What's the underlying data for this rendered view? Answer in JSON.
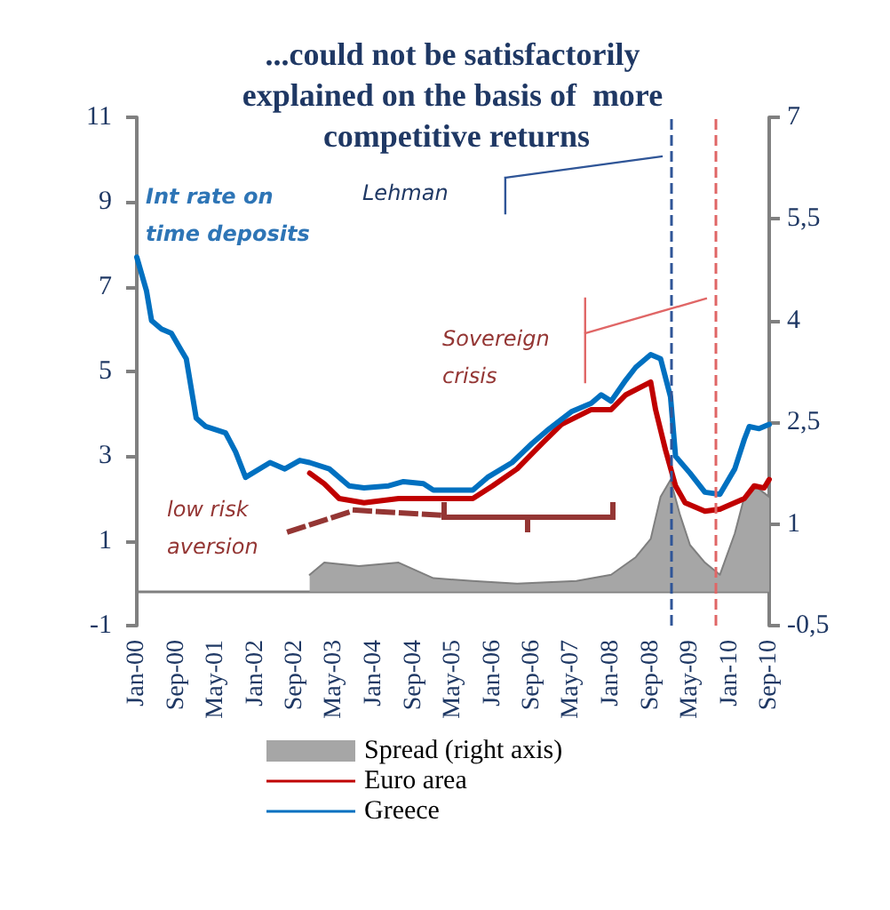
{
  "chart_data": {
    "type": "line",
    "title": "...could not be satisfactorily explained on the basis of  more competitive returns",
    "xlim": [
      "2000-01",
      "2010-09"
    ],
    "xticks": [
      {
        "value": "2000-01",
        "label": "Jan-00"
      },
      {
        "value": "2000-09",
        "label": "Sep-00"
      },
      {
        "value": "2001-05",
        "label": "May-01"
      },
      {
        "value": "2002-01",
        "label": "Jan-02"
      },
      {
        "value": "2002-09",
        "label": "Sep-02"
      },
      {
        "value": "2003-05",
        "label": "May-03"
      },
      {
        "value": "2004-01",
        "label": "Jan-04"
      },
      {
        "value": "2004-09",
        "label": "Sep-04"
      },
      {
        "value": "2005-05",
        "label": "May-05"
      },
      {
        "value": "2006-01",
        "label": "Jan-06"
      },
      {
        "value": "2006-09",
        "label": "Sep-06"
      },
      {
        "value": "2007-05",
        "label": "May-07"
      },
      {
        "value": "2008-01",
        "label": "Jan-08"
      },
      {
        "value": "2008-09",
        "label": "Sep-08"
      },
      {
        "value": "2009-05",
        "label": "May-09"
      },
      {
        "value": "2010-01",
        "label": "Jan-10"
      },
      {
        "value": "2010-09",
        "label": "Sep-10"
      }
    ],
    "ylim": [
      -1,
      11
    ],
    "yticks": [
      -1,
      1,
      3,
      5,
      7,
      9,
      11
    ],
    "y2lim": [
      -0.5,
      7
    ],
    "y2ticks": [
      {
        "value": -0.5,
        "label": "-0,5"
      },
      {
        "value": 1,
        "label": "1"
      },
      {
        "value": 2.5,
        "label": "2,5"
      },
      {
        "value": 4,
        "label": "4"
      },
      {
        "value": 5.5,
        "label": "5,5"
      },
      {
        "value": 7,
        "label": "7"
      }
    ],
    "series": [
      {
        "name": "Spread (right axis)",
        "type": "area",
        "axis": "y2",
        "color": "#a6a6a6",
        "x": [
          "2002-12",
          "2003-03",
          "2003-10",
          "2004-06",
          "2005-01",
          "2005-09",
          "2006-06",
          "2007-06",
          "2008-01",
          "2008-06",
          "2008-09",
          "2008-11",
          "2009-01",
          "2009-03",
          "2009-05",
          "2009-08",
          "2009-11",
          "2010-02",
          "2010-04",
          "2010-06",
          "2010-09"
        ],
        "values": [
          0.25,
          0.43,
          0.38,
          0.43,
          0.2,
          0.16,
          0.12,
          0.16,
          0.25,
          0.51,
          0.78,
          1.4,
          1.65,
          1.13,
          0.69,
          0.43,
          0.25,
          0.86,
          1.4,
          1.57,
          1.4
        ]
      },
      {
        "name": "Euro area",
        "color": "#c00000",
        "x": [
          "2002-12",
          "2003-03",
          "2003-06",
          "2003-11",
          "2004-06",
          "2005-01",
          "2005-09",
          "2006-01",
          "2006-06",
          "2006-11",
          "2007-03",
          "2007-09",
          "2008-01",
          "2008-04",
          "2008-09",
          "2008-10",
          "2008-12",
          "2009-02",
          "2009-04",
          "2009-08",
          "2009-11",
          "2010-04",
          "2010-06",
          "2010-08",
          "2010-09"
        ],
        "values": [
          2.6,
          2.35,
          2.0,
          1.9,
          2.0,
          2.0,
          2.0,
          2.3,
          2.7,
          3.3,
          3.75,
          4.1,
          4.1,
          4.45,
          4.75,
          4.1,
          3.15,
          2.3,
          1.9,
          1.7,
          1.75,
          2.0,
          2.3,
          2.25,
          2.45
        ]
      },
      {
        "name": "Greece",
        "color": "#0070c0",
        "x": [
          "2000-01",
          "2000-03",
          "2000-04",
          "2000-06",
          "2000-08",
          "2000-10",
          "2000-11",
          "2001-01",
          "2001-03",
          "2001-07",
          "2001-09",
          "2001-11",
          "2002-04",
          "2002-07",
          "2002-10",
          "2002-12",
          "2003-04",
          "2003-08",
          "2003-11",
          "2004-04",
          "2004-07",
          "2004-11",
          "2005-01",
          "2005-09",
          "2005-12",
          "2006-05",
          "2006-09",
          "2006-12",
          "2007-05",
          "2007-09",
          "2007-11",
          "2008-01",
          "2008-04",
          "2008-06",
          "2008-09",
          "2008-11",
          "2009-01",
          "2009-02",
          "2009-05",
          "2009-08",
          "2009-11",
          "2010-02",
          "2010-04",
          "2010-05",
          "2010-07",
          "2010-09"
        ],
        "values": [
          7.7,
          6.9,
          6.2,
          6.0,
          5.9,
          5.5,
          5.3,
          3.9,
          3.7,
          3.55,
          3.1,
          2.5,
          2.85,
          2.7,
          2.9,
          2.85,
          2.7,
          2.3,
          2.25,
          2.3,
          2.4,
          2.35,
          2.2,
          2.2,
          2.5,
          2.85,
          3.3,
          3.6,
          4.05,
          4.25,
          4.45,
          4.3,
          4.8,
          5.1,
          5.4,
          5.3,
          4.4,
          3.0,
          2.6,
          2.15,
          2.1,
          2.7,
          3.4,
          3.7,
          3.65,
          3.75
        ]
      }
    ],
    "ref_lines": [
      {
        "axis": "x",
        "value": "2009-01",
        "color": "#2f5597",
        "line_style": "dashed"
      },
      {
        "axis": "x",
        "value": "2009-10",
        "color": "#e06666",
        "line_style": "dashed"
      }
    ],
    "annotations": [
      "Int rate on time deposits",
      "Lehman",
      "Sovereign crisis",
      "low risk aversion"
    ],
    "legend": "bottom",
    "grid": false,
    "marker": "none",
    "line_style": "solid"
  }
}
